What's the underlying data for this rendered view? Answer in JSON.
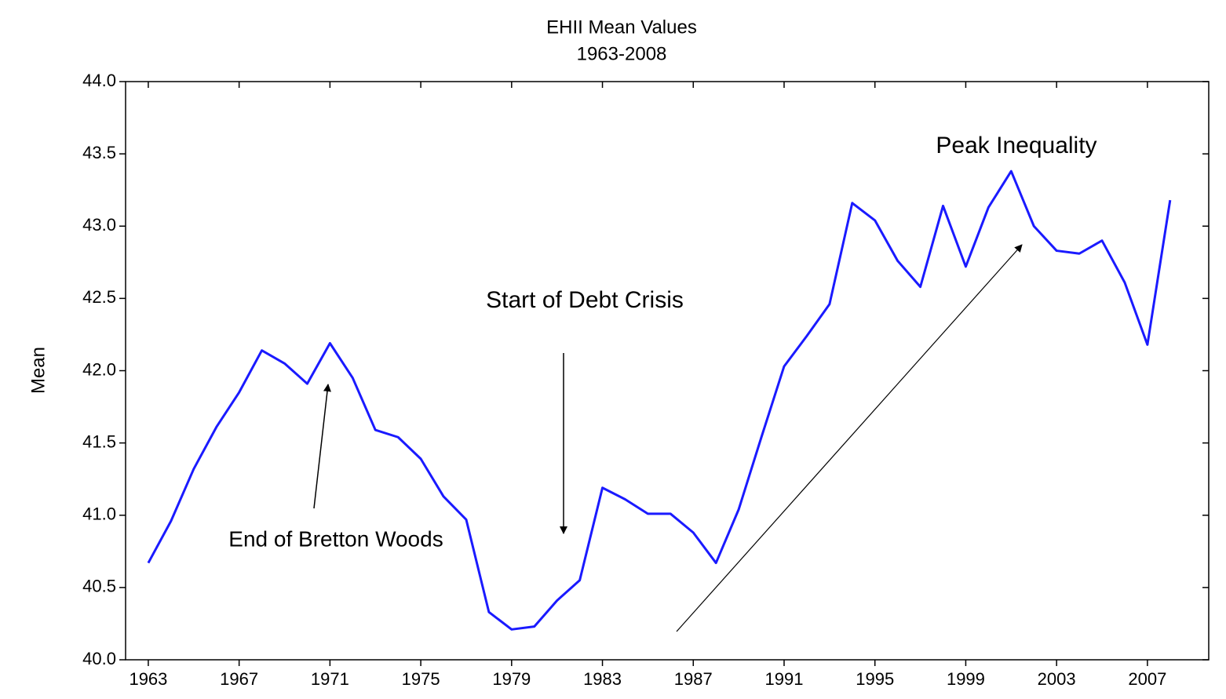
{
  "chart_data": {
    "type": "line",
    "title": "EHII Mean Values",
    "subtitle": "1963-2008",
    "y_label": "Mean",
    "annotations": [
      "Peak Inequality",
      "Start of Debt Crisis",
      "End of Bretton Woods"
    ],
    "x": [
      1963,
      1964,
      1965,
      1966,
      1967,
      1968,
      1969,
      1970,
      1971,
      1972,
      1973,
      1974,
      1975,
      1976,
      1977,
      1978,
      1979,
      1980,
      1981,
      1982,
      1983,
      1984,
      1985,
      1986,
      1987,
      1988,
      1989,
      1990,
      1991,
      1992,
      1993,
      1994,
      1995,
      1996,
      1997,
      1998,
      1999,
      2000,
      2001,
      2002,
      2003,
      2004,
      2005,
      2006,
      2007,
      2008
    ],
    "series": [
      {
        "name": "Mean",
        "color": "#1a1aff",
        "values": [
          40.67,
          40.96,
          41.32,
          41.61,
          41.85,
          42.14,
          42.05,
          41.91,
          42.19,
          41.95,
          41.59,
          41.54,
          41.39,
          41.13,
          40.97,
          40.33,
          40.21,
          40.23,
          40.41,
          40.55,
          41.19,
          41.11,
          41.01,
          41.01,
          40.88,
          40.67,
          41.04,
          41.54,
          42.03,
          42.24,
          42.46,
          43.16,
          43.04,
          42.76,
          42.58,
          43.14,
          42.72,
          43.13,
          43.38,
          43.0,
          42.83,
          42.81,
          42.9,
          42.61,
          42.18,
          43.18
        ]
      }
    ],
    "xlim": [
      1962,
      2009.7
    ],
    "xticks": [
      1963,
      1967,
      1971,
      1975,
      1979,
      1983,
      1987,
      1991,
      1995,
      1999,
      2003,
      2007
    ],
    "ylim": [
      40,
      44
    ],
    "yticks": [
      {
        "value": 40,
        "label": "40.0"
      },
      40.5,
      {
        "value": 41,
        "label": "41.0"
      },
      41.5,
      {
        "value": 42,
        "label": "42.0"
      },
      42.5,
      {
        "value": 43,
        "label": "43.0"
      },
      43.5,
      {
        "value": 44,
        "label": "44.0"
      }
    ],
    "grid": false
  }
}
